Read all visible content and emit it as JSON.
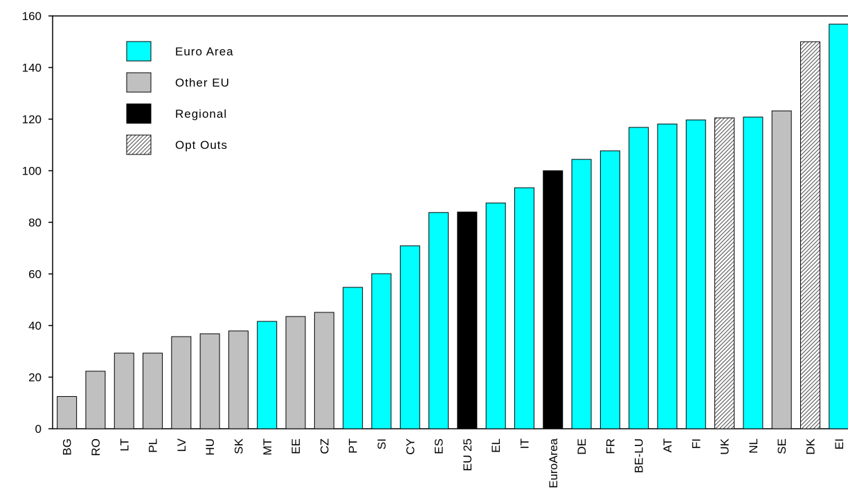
{
  "chart_data": {
    "type": "bar",
    "categories": [
      "BG",
      "RO",
      "LT",
      "PL",
      "LV",
      "HU",
      "SK",
      "MT",
      "EE",
      "CZ",
      "PT",
      "SI",
      "CY",
      "ES",
      "EU 25",
      "EL",
      "IT",
      "EuroArea",
      "DE",
      "FR",
      "BE-LU",
      "AT",
      "FI",
      "UK",
      "NL",
      "SE",
      "DK",
      "EI"
    ],
    "series": [
      {
        "name": "Euro Area",
        "color": "#00ffff",
        "values": [
          null,
          null,
          null,
          null,
          null,
          null,
          null,
          41.6,
          null,
          null,
          54.8,
          60.1,
          70.9,
          83.8,
          null,
          87.5,
          93.4,
          null,
          104.4,
          107.7,
          116.8,
          118.1,
          119.7,
          null,
          120.8,
          null,
          null,
          156.8
        ]
      },
      {
        "name": "Other EU",
        "color": "#c0c0c0",
        "values": [
          12.5,
          22.3,
          29.3,
          29.3,
          35.7,
          36.8,
          37.9,
          null,
          43.5,
          45.1,
          null,
          null,
          null,
          null,
          null,
          null,
          null,
          null,
          null,
          null,
          null,
          null,
          null,
          null,
          null,
          123.2,
          null,
          null
        ]
      },
      {
        "name": "Regional",
        "color": "#000000",
        "values": [
          null,
          null,
          null,
          null,
          null,
          null,
          null,
          null,
          null,
          null,
          null,
          null,
          null,
          null,
          84,
          null,
          null,
          100,
          null,
          null,
          null,
          null,
          null,
          null,
          null,
          null,
          null,
          null
        ]
      },
      {
        "name": "Opt Outs",
        "color": "#808080",
        "pattern": "hatch",
        "values": [
          null,
          null,
          null,
          null,
          null,
          null,
          null,
          null,
          null,
          null,
          null,
          null,
          null,
          null,
          null,
          null,
          null,
          null,
          null,
          null,
          null,
          null,
          null,
          120.5,
          null,
          null,
          150,
          null
        ]
      }
    ],
    "ylim": [
      0,
      160
    ],
    "yticks": [
      0,
      20,
      40,
      60,
      80,
      100,
      120,
      140,
      160
    ]
  }
}
